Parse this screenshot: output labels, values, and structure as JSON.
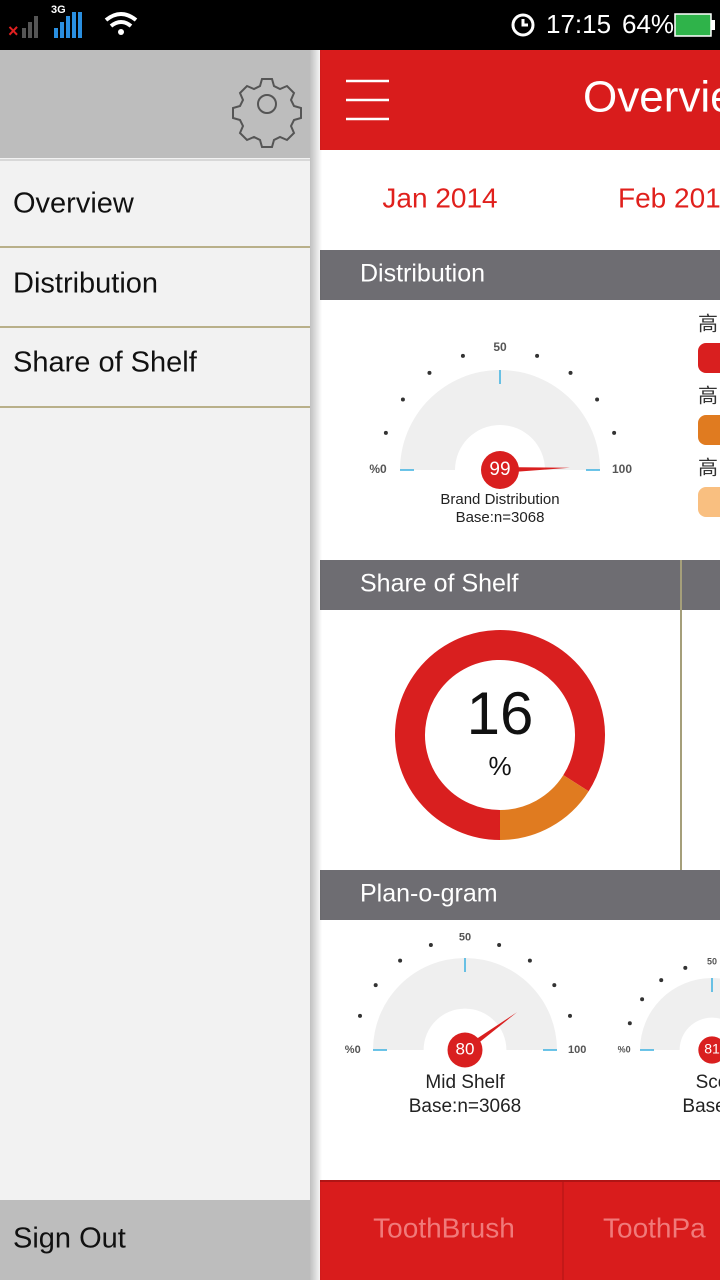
{
  "status_bar": {
    "network": "3G",
    "time": "17:15",
    "battery": "64%"
  },
  "drawer": {
    "items": [
      "Overview",
      "Distribution",
      "Share of Shelf"
    ],
    "sign_out": "Sign Out"
  },
  "header": {
    "title": "Overvie"
  },
  "months": [
    "Jan 2014",
    "Feb 201"
  ],
  "distribution": {
    "title": "Distribution",
    "gauge": {
      "range": [
        0,
        100
      ],
      "ticks": [
        {
          "value": 0,
          "label": "%0"
        },
        50,
        100
      ],
      "value": 99,
      "label": "Brand Distribution",
      "base": "Base:n=3068"
    },
    "legend": [
      {
        "label": "高",
        "color": "#d91f1f"
      },
      {
        "label": "高",
        "color": "#e07b20"
      },
      {
        "label": "高",
        "color": "#f9bf80"
      }
    ]
  },
  "share_of_shelf": {
    "title": "Share of Shelf",
    "value": 16,
    "unit": "%",
    "color": "#e07b20",
    "rest_color": "#d91f1f"
  },
  "plan_o_gram": {
    "title": "Plan-o-gram",
    "gauges": [
      {
        "range": [
          0,
          100
        ],
        "ticks": [
          {
            "value": 0,
            "label": "%0"
          },
          50,
          100
        ],
        "value": 80,
        "label": "Mid Shelf",
        "base": "Base:n=3068"
      },
      {
        "range": [
          0,
          100
        ],
        "ticks": [
          {
            "value": 0,
            "label": "%0"
          },
          50
        ],
        "value": 81,
        "label": "Sco",
        "base": "Base:n"
      }
    ]
  },
  "tabs": [
    "ToothBrush",
    "ToothPa"
  ]
}
